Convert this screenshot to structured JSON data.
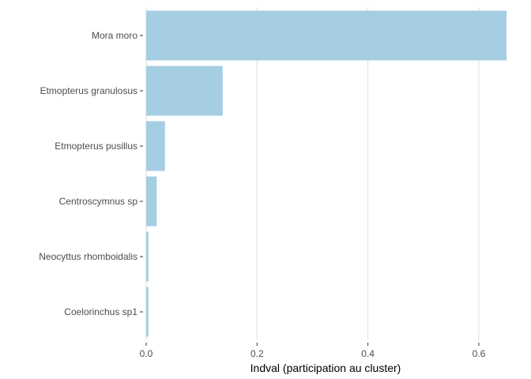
{
  "chart_data": {
    "type": "bar",
    "orientation": "horizontal",
    "categories": [
      "Mora moro",
      "Etmopterus granulosus",
      "Etmopterus pusillus",
      "Centroscymnus sp",
      "Neocyttus rhomboidalis",
      "Coelorinchus sp1"
    ],
    "values": [
      0.65,
      0.138,
      0.034,
      0.019,
      0.004,
      0.004
    ],
    "xlabel": "Indval (participation au cluster)",
    "ylabel": "",
    "xlim": [
      0,
      0.65
    ],
    "x_ticks": [
      0.0,
      0.2,
      0.4,
      0.6
    ],
    "x_tick_labels": [
      "0.0",
      "0.2",
      "0.4",
      "0.6"
    ],
    "grid": "vertical-major",
    "legend": "none",
    "colors": {
      "bar": "#a6cee3",
      "grid": "#dcdcdc"
    }
  }
}
